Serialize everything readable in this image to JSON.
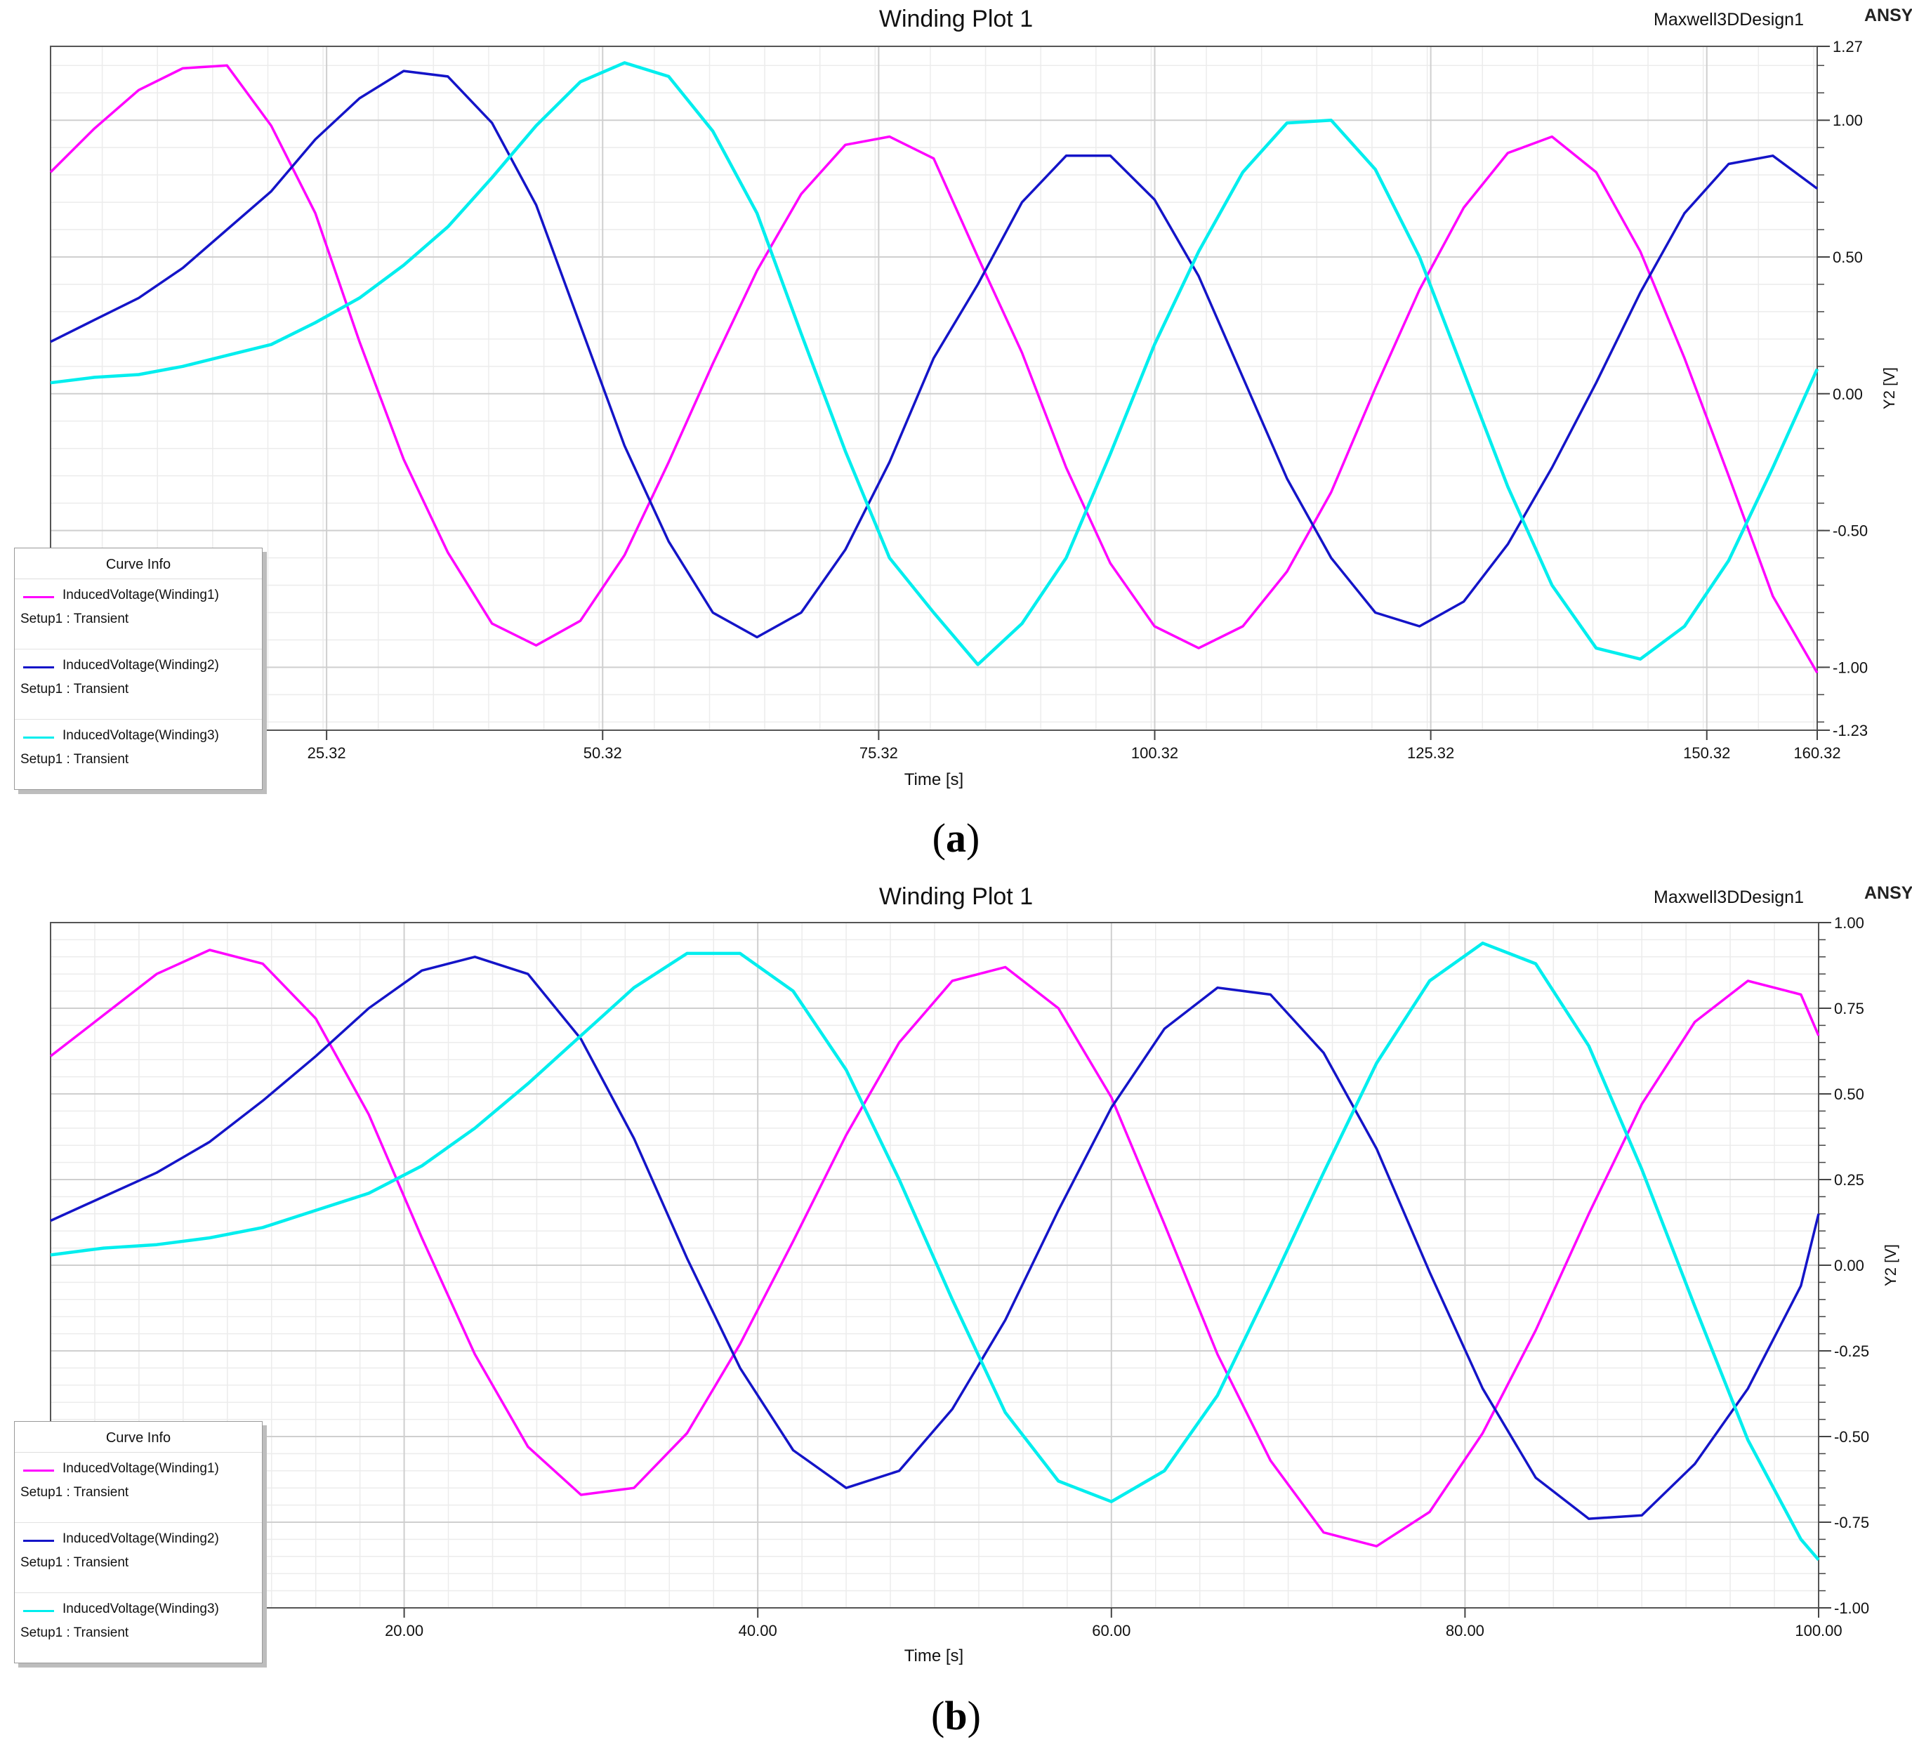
{
  "panels": [
    {
      "id": "a",
      "title": "Winding Plot 1",
      "design_name": "Maxwell3DDesign1",
      "brand": "ANSYS",
      "caption": "a",
      "legend": {
        "title": "Curve Info",
        "entries": [
          {
            "name": "InducedVoltage(Winding1)",
            "setup": "Setup1 : Transient"
          },
          {
            "name": "InducedVoltage(Winding2)",
            "setup": "Setup1 : Transient"
          },
          {
            "name": "InducedVoltage(Winding3)",
            "setup": "Setup1 : Transient"
          }
        ]
      }
    },
    {
      "id": "b",
      "title": "Winding Plot 1",
      "design_name": "Maxwell3DDesign1",
      "brand": "ANSYS",
      "caption": "b",
      "legend": {
        "title": "Curve Info",
        "entries": [
          {
            "name": "InducedVoltage(Winding1)",
            "setup": "Setup1 : Transient"
          },
          {
            "name": "InducedVoltage(Winding2)",
            "setup": "Setup1 : Transient"
          },
          {
            "name": "InducedVoltage(Winding3)",
            "setup": "Setup1 : Transient"
          }
        ]
      }
    }
  ],
  "chart_data": [
    {
      "type": "line",
      "title": "Winding Plot 1",
      "xlabel": "Time [s]",
      "ylabel": "Y2 [V]",
      "xlim": [
        0.32,
        160.32
      ],
      "ylim": [
        -1.23,
        1.27
      ],
      "xticks": [
        25.32,
        50.32,
        75.32,
        100.32,
        125.32,
        150.32,
        160.32
      ],
      "xtick_labels": [
        "25.32",
        "50.32",
        "75.32",
        "100.32",
        "125.32",
        "150.32",
        "160.32"
      ],
      "yticks": [
        1.27,
        1.0,
        0.5,
        0.0,
        -0.5,
        -1.0,
        -1.23
      ],
      "ytick_labels": [
        "1.27",
        "1.00",
        "0.50",
        "0.00",
        "-0.50",
        "-1.00",
        "-1.23"
      ],
      "grid": true,
      "legend_position": "bottom-left",
      "series": [
        {
          "name": "InducedVoltage(Winding1)",
          "color": "#ff00ff",
          "points": [
            [
              0.32,
              0.81
            ],
            [
              4.3,
              0.97
            ],
            [
              8.3,
              1.11
            ],
            [
              12.3,
              1.19
            ],
            [
              16.3,
              1.2
            ],
            [
              20.3,
              0.98
            ],
            [
              24.3,
              0.66
            ],
            [
              28.3,
              0.19
            ],
            [
              32.3,
              -0.24
            ],
            [
              36.3,
              -0.58
            ],
            [
              40.3,
              -0.84
            ],
            [
              44.3,
              -0.92
            ],
            [
              48.3,
              -0.83
            ],
            [
              52.3,
              -0.59
            ],
            [
              56.3,
              -0.25
            ],
            [
              60.3,
              0.11
            ],
            [
              64.3,
              0.45
            ],
            [
              68.3,
              0.73
            ],
            [
              72.3,
              0.91
            ],
            [
              76.3,
              0.94
            ],
            [
              80.3,
              0.86
            ],
            [
              84.3,
              0.5
            ],
            [
              88.3,
              0.15
            ],
            [
              92.3,
              -0.27
            ],
            [
              96.3,
              -0.62
            ],
            [
              100.3,
              -0.85
            ],
            [
              104.3,
              -0.93
            ],
            [
              108.3,
              -0.85
            ],
            [
              112.3,
              -0.65
            ],
            [
              116.3,
              -0.36
            ],
            [
              120.3,
              0.02
            ],
            [
              124.3,
              0.38
            ],
            [
              128.3,
              0.68
            ],
            [
              132.3,
              0.88
            ],
            [
              136.3,
              0.94
            ],
            [
              140.3,
              0.81
            ],
            [
              144.3,
              0.52
            ],
            [
              148.3,
              0.13
            ],
            [
              152.3,
              -0.3
            ],
            [
              156.3,
              -0.74
            ],
            [
              160.32,
              -1.02
            ]
          ]
        },
        {
          "name": "InducedVoltage(Winding2)",
          "color": "#1414c8",
          "points": [
            [
              0.32,
              0.19
            ],
            [
              4.3,
              0.27
            ],
            [
              8.3,
              0.35
            ],
            [
              12.3,
              0.46
            ],
            [
              16.3,
              0.6
            ],
            [
              20.3,
              0.74
            ],
            [
              24.3,
              0.93
            ],
            [
              28.3,
              1.08
            ],
            [
              32.3,
              1.18
            ],
            [
              36.3,
              1.16
            ],
            [
              40.3,
              0.99
            ],
            [
              44.3,
              0.69
            ],
            [
              48.3,
              0.25
            ],
            [
              52.3,
              -0.19
            ],
            [
              56.3,
              -0.54
            ],
            [
              60.3,
              -0.8
            ],
            [
              64.3,
              -0.89
            ],
            [
              68.3,
              -0.8
            ],
            [
              72.3,
              -0.57
            ],
            [
              76.3,
              -0.25
            ],
            [
              80.3,
              0.13
            ],
            [
              84.3,
              0.4
            ],
            [
              88.3,
              0.7
            ],
            [
              92.3,
              0.87
            ],
            [
              96.3,
              0.87
            ],
            [
              100.3,
              0.71
            ],
            [
              104.3,
              0.43
            ],
            [
              108.3,
              0.06
            ],
            [
              112.3,
              -0.31
            ],
            [
              116.3,
              -0.6
            ],
            [
              120.3,
              -0.8
            ],
            [
              124.3,
              -0.85
            ],
            [
              128.3,
              -0.76
            ],
            [
              132.3,
              -0.55
            ],
            [
              136.3,
              -0.27
            ],
            [
              140.3,
              0.04
            ],
            [
              144.3,
              0.37
            ],
            [
              148.3,
              0.66
            ],
            [
              152.3,
              0.84
            ],
            [
              156.3,
              0.87
            ],
            [
              160.32,
              0.75
            ]
          ]
        },
        {
          "name": "InducedVoltage(Winding3)",
          "color": "#00eeee",
          "points": [
            [
              0.32,
              0.04
            ],
            [
              4.3,
              0.06
            ],
            [
              8.3,
              0.07
            ],
            [
              12.3,
              0.1
            ],
            [
              16.3,
              0.14
            ],
            [
              20.3,
              0.18
            ],
            [
              24.3,
              0.26
            ],
            [
              28.3,
              0.35
            ],
            [
              32.3,
              0.47
            ],
            [
              36.3,
              0.61
            ],
            [
              40.3,
              0.79
            ],
            [
              44.3,
              0.98
            ],
            [
              48.3,
              1.14
            ],
            [
              52.3,
              1.21
            ],
            [
              56.3,
              1.16
            ],
            [
              60.3,
              0.96
            ],
            [
              64.3,
              0.66
            ],
            [
              68.3,
              0.22
            ],
            [
              72.3,
              -0.21
            ],
            [
              76.3,
              -0.6
            ],
            [
              80.3,
              -0.8
            ],
            [
              84.3,
              -0.99
            ],
            [
              88.3,
              -0.84
            ],
            [
              92.3,
              -0.6
            ],
            [
              96.3,
              -0.22
            ],
            [
              100.3,
              0.18
            ],
            [
              104.3,
              0.52
            ],
            [
              108.3,
              0.81
            ],
            [
              112.3,
              0.99
            ],
            [
              116.3,
              1.0
            ],
            [
              120.3,
              0.82
            ],
            [
              124.3,
              0.5
            ],
            [
              128.3,
              0.08
            ],
            [
              132.3,
              -0.34
            ],
            [
              136.3,
              -0.7
            ],
            [
              140.3,
              -0.93
            ],
            [
              144.3,
              -0.97
            ],
            [
              148.3,
              -0.85
            ],
            [
              152.3,
              -0.61
            ],
            [
              156.3,
              -0.27
            ],
            [
              160.32,
              0.09
            ]
          ]
        }
      ]
    },
    {
      "type": "line",
      "title": "Winding Plot 1",
      "xlabel": "Time [s]",
      "ylabel": "Y2 [V]",
      "xlim": [
        0,
        100
      ],
      "ylim": [
        -1.0,
        1.0
      ],
      "xticks": [
        20,
        40,
        60,
        80,
        100
      ],
      "xtick_labels": [
        "20.00",
        "40.00",
        "60.00",
        "80.00",
        "100.00"
      ],
      "yticks": [
        1.0,
        0.75,
        0.5,
        0.25,
        0.0,
        -0.25,
        -0.5,
        -0.75,
        -1.0
      ],
      "ytick_labels": [
        "1.00",
        "0.75",
        "0.50",
        "0.25",
        "0.00",
        "-0.25",
        "-0.50",
        "-0.75",
        "-1.00"
      ],
      "grid": true,
      "legend_position": "bottom-left",
      "series": [
        {
          "name": "InducedVoltage(Winding1)",
          "color": "#ff00ff",
          "points": [
            [
              0,
              0.61
            ],
            [
              3,
              0.73
            ],
            [
              6,
              0.85
            ],
            [
              9,
              0.92
            ],
            [
              12,
              0.88
            ],
            [
              15,
              0.72
            ],
            [
              18,
              0.44
            ],
            [
              21,
              0.08
            ],
            [
              24,
              -0.26
            ],
            [
              27,
              -0.53
            ],
            [
              30,
              -0.67
            ],
            [
              33,
              -0.65
            ],
            [
              36,
              -0.49
            ],
            [
              39,
              -0.23
            ],
            [
              42,
              0.07
            ],
            [
              45,
              0.38
            ],
            [
              48,
              0.65
            ],
            [
              51,
              0.83
            ],
            [
              54,
              0.87
            ],
            [
              57,
              0.75
            ],
            [
              60,
              0.49
            ],
            [
              63,
              0.12
            ],
            [
              66,
              -0.26
            ],
            [
              69,
              -0.57
            ],
            [
              72,
              -0.78
            ],
            [
              75,
              -0.82
            ],
            [
              78,
              -0.72
            ],
            [
              81,
              -0.49
            ],
            [
              84,
              -0.19
            ],
            [
              87,
              0.15
            ],
            [
              90,
              0.47
            ],
            [
              93,
              0.71
            ],
            [
              96,
              0.83
            ],
            [
              99,
              0.79
            ],
            [
              100,
              0.67
            ]
          ]
        },
        {
          "name": "InducedVoltage(Winding2)",
          "color": "#1414c8",
          "points": [
            [
              0,
              0.13
            ],
            [
              3,
              0.2
            ],
            [
              6,
              0.27
            ],
            [
              9,
              0.36
            ],
            [
              12,
              0.48
            ],
            [
              15,
              0.61
            ],
            [
              18,
              0.75
            ],
            [
              21,
              0.86
            ],
            [
              24,
              0.9
            ],
            [
              27,
              0.85
            ],
            [
              30,
              0.66
            ],
            [
              33,
              0.37
            ],
            [
              36,
              0.02
            ],
            [
              39,
              -0.3
            ],
            [
              42,
              -0.54
            ],
            [
              45,
              -0.65
            ],
            [
              48,
              -0.6
            ],
            [
              51,
              -0.42
            ],
            [
              54,
              -0.16
            ],
            [
              57,
              0.16
            ],
            [
              60,
              0.46
            ],
            [
              63,
              0.69
            ],
            [
              66,
              0.81
            ],
            [
              69,
              0.79
            ],
            [
              72,
              0.62
            ],
            [
              75,
              0.34
            ],
            [
              78,
              -0.02
            ],
            [
              81,
              -0.36
            ],
            [
              84,
              -0.62
            ],
            [
              87,
              -0.74
            ],
            [
              90,
              -0.73
            ],
            [
              93,
              -0.58
            ],
            [
              96,
              -0.36
            ],
            [
              99,
              -0.06
            ],
            [
              100,
              0.15
            ]
          ]
        },
        {
          "name": "InducedVoltage(Winding3)",
          "color": "#00eeee",
          "points": [
            [
              0,
              0.03
            ],
            [
              3,
              0.05
            ],
            [
              6,
              0.06
            ],
            [
              9,
              0.08
            ],
            [
              12,
              0.11
            ],
            [
              15,
              0.16
            ],
            [
              18,
              0.21
            ],
            [
              21,
              0.29
            ],
            [
              24,
              0.4
            ],
            [
              27,
              0.53
            ],
            [
              30,
              0.67
            ],
            [
              33,
              0.81
            ],
            [
              36,
              0.91
            ],
            [
              39,
              0.91
            ],
            [
              42,
              0.8
            ],
            [
              45,
              0.57
            ],
            [
              48,
              0.25
            ],
            [
              51,
              -0.1
            ],
            [
              54,
              -0.43
            ],
            [
              57,
              -0.63
            ],
            [
              60,
              -0.69
            ],
            [
              63,
              -0.6
            ],
            [
              66,
              -0.38
            ],
            [
              69,
              -0.06
            ],
            [
              72,
              0.27
            ],
            [
              75,
              0.59
            ],
            [
              78,
              0.83
            ],
            [
              81,
              0.94
            ],
            [
              84,
              0.88
            ],
            [
              87,
              0.64
            ],
            [
              90,
              0.28
            ],
            [
              93,
              -0.12
            ],
            [
              96,
              -0.51
            ],
            [
              99,
              -0.8
            ],
            [
              100,
              -0.86
            ]
          ]
        }
      ]
    }
  ]
}
